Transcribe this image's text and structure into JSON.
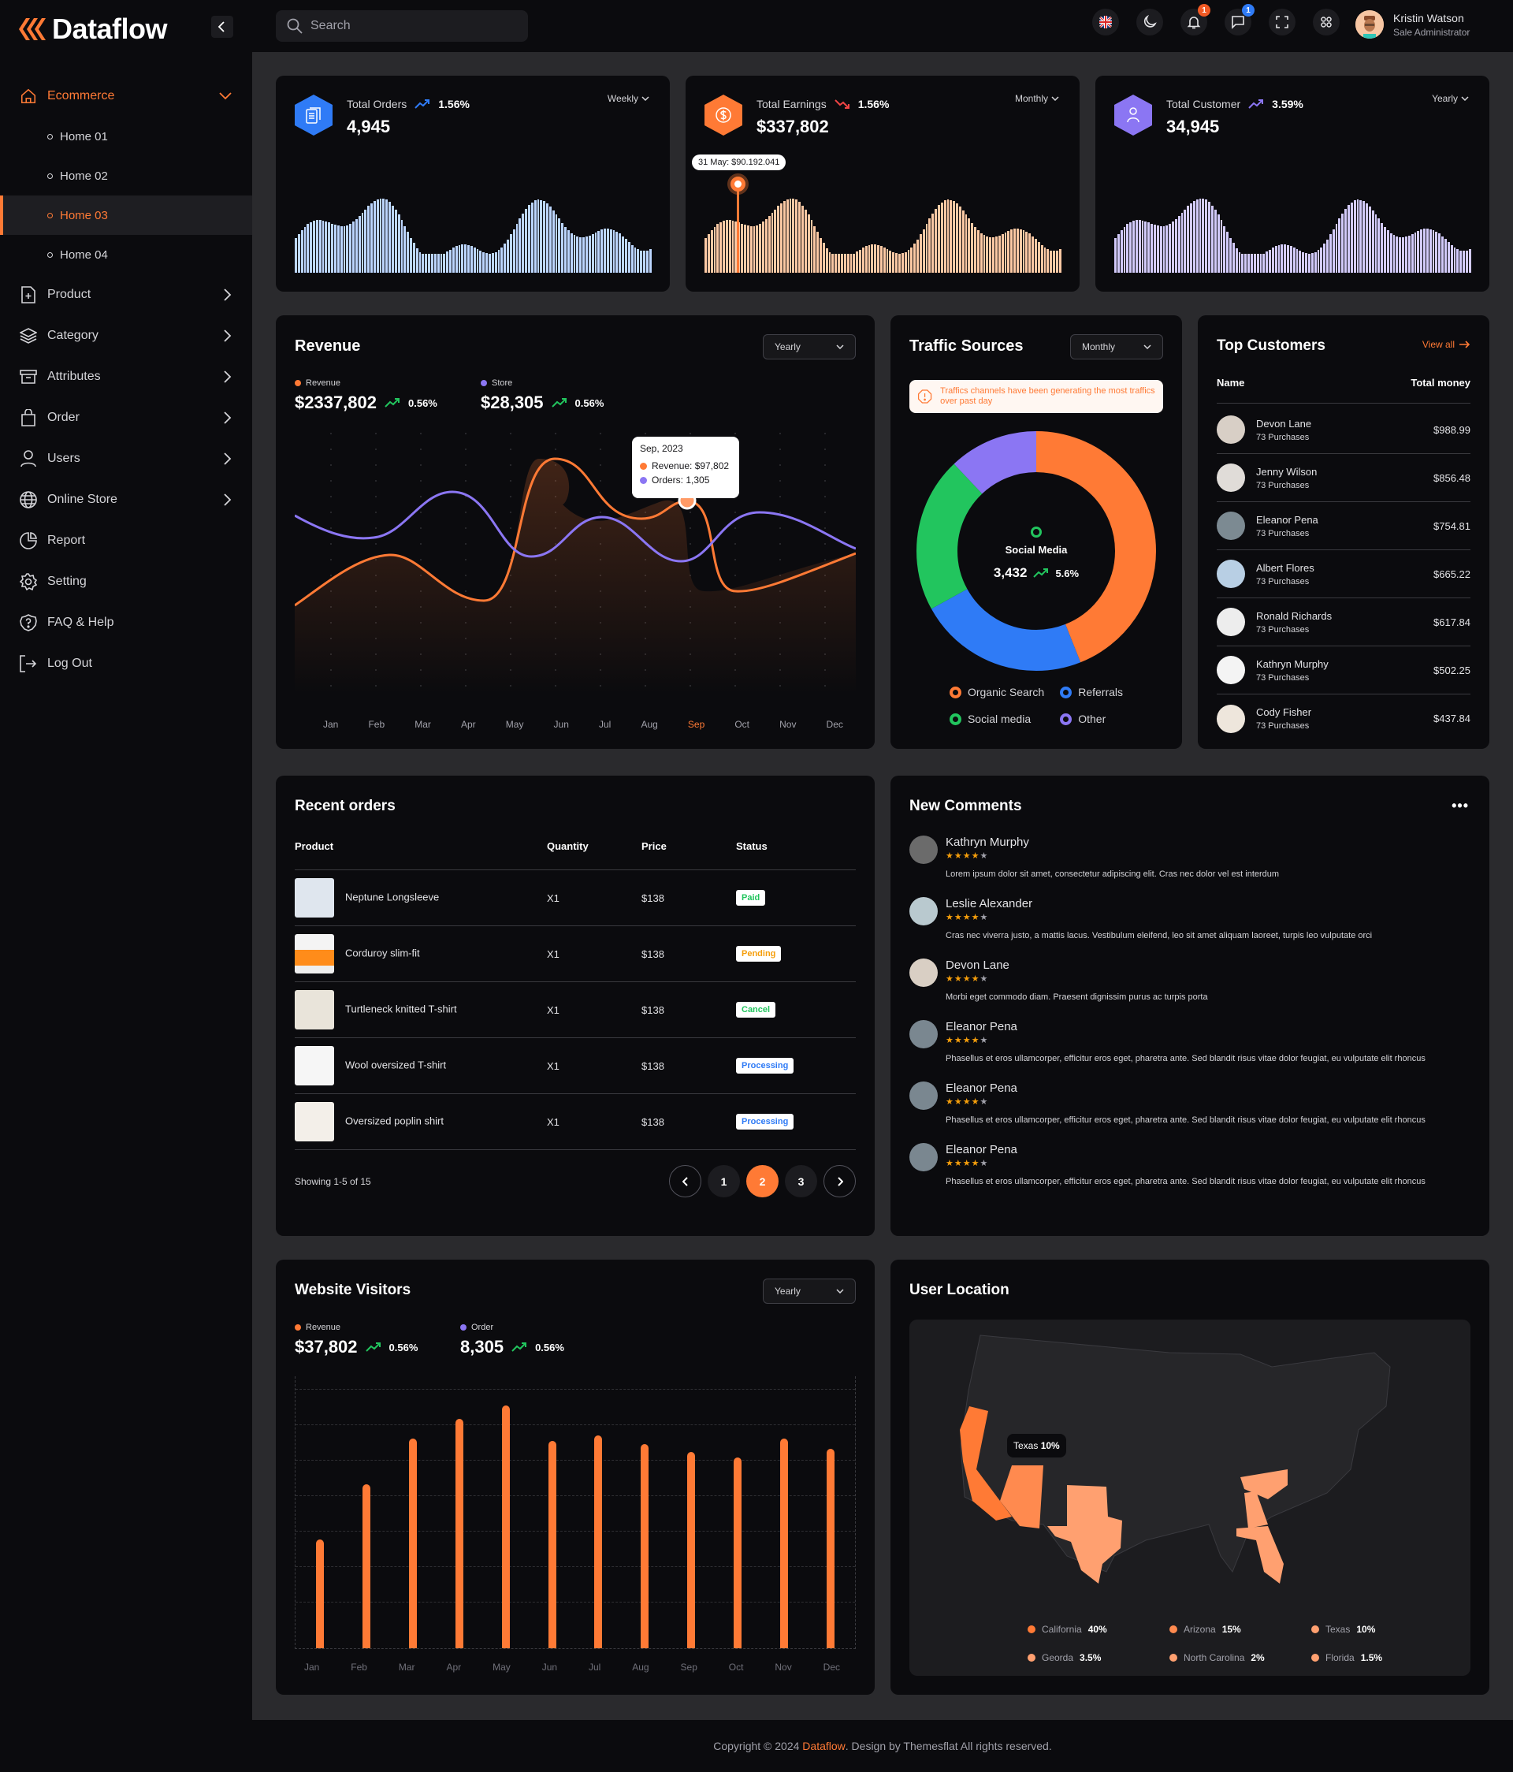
{
  "app": {
    "name": "Dataflow"
  },
  "search": {
    "placeholder": "Search"
  },
  "header": {
    "notifications_count": "1",
    "messages_count": "1",
    "user": {
      "name": "Kristin Watson",
      "role": "Sale Administrator"
    }
  },
  "sidebar": {
    "ecommerce": {
      "label": "Ecommerce",
      "sub": [
        {
          "label": "Home 01"
        },
        {
          "label": "Home 02"
        },
        {
          "label": "Home 03"
        },
        {
          "label": "Home 04"
        }
      ]
    },
    "items": [
      {
        "label": "Product",
        "icon": "file-plus-icon"
      },
      {
        "label": "Category",
        "icon": "layers-icon"
      },
      {
        "label": "Attributes",
        "icon": "archive-icon"
      },
      {
        "label": "Order",
        "icon": "bag-icon"
      },
      {
        "label": "Users",
        "icon": "user-icon"
      },
      {
        "label": "Online Store",
        "icon": "globe-icon"
      },
      {
        "label": "Report",
        "icon": "pie-icon"
      },
      {
        "label": "Setting",
        "icon": "gear-icon"
      },
      {
        "label": "FAQ & Help",
        "icon": "help-icon"
      },
      {
        "label": "Log Out",
        "icon": "logout-icon"
      }
    ]
  },
  "stats": [
    {
      "title": "Total Orders",
      "change": "1.56%",
      "trend": "up",
      "value": "4,945",
      "period": "Weekly",
      "color": "#2f7bf6",
      "bar_color": "#bcd6ff"
    },
    {
      "title": "Total Earnings",
      "change": "1.56%",
      "trend": "down",
      "value": "$337,802",
      "period": "Monthly",
      "color": "#ff7a35",
      "bar_color": "#fcc9a4",
      "tooltip": "31 May: $90.192.041"
    },
    {
      "title": "Total Customer",
      "change": "3.59%",
      "trend": "up",
      "value": "34,945",
      "period": "Yearly",
      "color": "#8b76f3",
      "bar_color": "#d3cbfb"
    }
  ],
  "revenue": {
    "title": "Revenue",
    "period": "Yearly",
    "series": [
      {
        "label": "Revenue",
        "value": "$2337,802",
        "change": "0.56%",
        "color": "#ff7a35"
      },
      {
        "label": "Store",
        "value": "$28,305",
        "change": "0.56%",
        "color": "#8b76f3"
      }
    ],
    "tooltip": {
      "title": "Sep, 2023",
      "line1": "Revenue: $97,802",
      "line2": "Orders: 1,305"
    },
    "months": [
      "Jan",
      "Feb",
      "Mar",
      "Apr",
      "May",
      "Jun",
      "Jul",
      "Aug",
      "Sep",
      "Oct",
      "Nov",
      "Dec"
    ],
    "active_month": "Sep"
  },
  "traffic": {
    "title": "Traffic Sources",
    "period": "Monthly",
    "alert": "Traffics channels have been generating the most traffics over past day",
    "center": {
      "label": "Social Media",
      "value": "3,432",
      "change": "5.6%"
    },
    "legend": [
      {
        "label": "Organic Search",
        "color": "#ff7a35"
      },
      {
        "label": "Referrals",
        "color": "#2f7bf6"
      },
      {
        "label": "Social media",
        "color": "#22c55e"
      },
      {
        "label": "Other",
        "color": "#8b76f3"
      }
    ]
  },
  "top_customers": {
    "title": "Top Customers",
    "view_all": "View all",
    "col_name": "Name",
    "col_total": "Total money",
    "rows": [
      {
        "name": "Devon Lane",
        "sub": "73 Purchases",
        "amount": "$988.99"
      },
      {
        "name": "Jenny Wilson",
        "sub": "73 Purchases",
        "amount": "$856.48"
      },
      {
        "name": "Eleanor Pena",
        "sub": "73 Purchases",
        "amount": "$754.81"
      },
      {
        "name": "Albert Flores",
        "sub": "73 Purchases",
        "amount": "$665.22"
      },
      {
        "name": "Ronald Richards",
        "sub": "73 Purchases",
        "amount": "$617.84"
      },
      {
        "name": "Kathryn Murphy",
        "sub": "73 Purchases",
        "amount": "$502.25"
      },
      {
        "name": "Cody Fisher",
        "sub": "73 Purchases",
        "amount": "$437.84"
      }
    ]
  },
  "recent_orders": {
    "title": "Recent orders",
    "columns": [
      "Product",
      "Quantity",
      "Price",
      "Status"
    ],
    "rows": [
      {
        "product": "Neptune Longsleeve",
        "qty": "X1",
        "price": "$138",
        "status": "Paid",
        "status_color": "#22c55e"
      },
      {
        "product": "Corduroy slim-fit",
        "qty": "X1",
        "price": "$138",
        "status": "Pending",
        "status_color": "#f59e0b"
      },
      {
        "product": "Turtleneck knitted T-shirt",
        "qty": "X1",
        "price": "$138",
        "status": "Cancel",
        "status_color": "#22c55e"
      },
      {
        "product": "Wool oversized T-shirt",
        "qty": "X1",
        "price": "$138",
        "status": "Processing",
        "status_color": "#2f7bf6"
      },
      {
        "product": "Oversized poplin shirt",
        "qty": "X1",
        "price": "$138",
        "status": "Processing",
        "status_color": "#2f7bf6"
      }
    ],
    "showing": "Showing 1-5 of 15",
    "pages": [
      "1",
      "2",
      "3"
    ],
    "current_page": "2"
  },
  "comments": {
    "title": "New Comments",
    "items": [
      {
        "name": "Kathryn Murphy",
        "text": "Lorem ipsum dolor sit amet, consectetur adipiscing elit. Cras nec dolor vel est interdum"
      },
      {
        "name": "Leslie Alexander",
        "text": "Cras nec viverra justo, a mattis lacus. Vestibulum eleifend, leo sit amet aliquam laoreet, turpis leo vulputate orci"
      },
      {
        "name": "Devon Lane",
        "text": "Morbi eget commodo diam. Praesent dignissim purus ac turpis porta"
      },
      {
        "name": "Eleanor Pena",
        "text": "Phasellus et eros ullamcorper, efficitur eros eget, pharetra ante. Sed blandit risus vitae dolor feugiat, eu vulputate elit rhoncus"
      },
      {
        "name": "Eleanor Pena",
        "text": "Phasellus et eros ullamcorper, efficitur eros eget, pharetra ante. Sed blandit risus vitae dolor feugiat, eu vulputate elit rhoncus"
      },
      {
        "name": "Eleanor Pena",
        "text": "Phasellus et eros ullamcorper, efficitur eros eget, pharetra ante. Sed blandit risus vitae dolor feugiat, eu vulputate elit rhoncus"
      }
    ],
    "stars": "★★★★",
    "star_empty": "★"
  },
  "visitors": {
    "title": "Website Visitors",
    "period": "Yearly",
    "series": [
      {
        "label": "Revenue",
        "value": "$37,802",
        "change": "0.56%",
        "color": "#ff7a35"
      },
      {
        "label": "Order",
        "value": "8,305",
        "change": "0.56%",
        "color": "#8b76f3"
      }
    ]
  },
  "location": {
    "title": "User Location",
    "tooltip": {
      "name": "Texas",
      "pct": "10%"
    },
    "legend": [
      {
        "name": "California",
        "pct": "40%",
        "color": "#ff7a35"
      },
      {
        "name": "Arizona",
        "pct": "15%",
        "color": "#ff8a4f"
      },
      {
        "name": "Texas",
        "pct": "10%",
        "color": "#ffa070"
      },
      {
        "name": "Georda",
        "pct": "3.5%",
        "color": "#ffa070"
      },
      {
        "name": "North Carolina",
        "pct": "2%",
        "color": "#ffa070"
      },
      {
        "name": "Florida",
        "pct": "1.5%",
        "color": "#ffa070"
      }
    ]
  },
  "footer": {
    "prefix": "Copyright © 2024 ",
    "brand": "Dataflow",
    "suffix": ". Design by Themesflat All rights reserved."
  },
  "chart_data": [
    {
      "type": "line",
      "title": "Revenue",
      "categories": [
        "Jan",
        "Feb",
        "Mar",
        "Apr",
        "May",
        "Jun",
        "Jul",
        "Aug",
        "Sep",
        "Oct",
        "Nov",
        "Dec"
      ],
      "series": [
        {
          "name": "Revenue",
          "values": [
            30,
            42,
            44,
            33,
            38,
            88,
            60,
            65,
            72,
            35,
            37,
            44
          ]
        },
        {
          "name": "Store",
          "values": [
            62,
            50,
            70,
            56,
            48,
            62,
            50,
            45,
            40,
            66,
            60,
            58
          ]
        }
      ],
      "ylim": [
        0,
        100
      ],
      "grid": true
    },
    {
      "type": "bar",
      "title": "Website Visitors",
      "categories": [
        "Jan",
        "Feb",
        "Mar",
        "Apr",
        "May",
        "Jun",
        "Jul",
        "Aug",
        "Sep",
        "Oct",
        "Nov",
        "Dec"
      ],
      "series": [
        {
          "name": "Revenue",
          "values": [
            40,
            60,
            77,
            84,
            89,
            76,
            78,
            75,
            72,
            70,
            77,
            73
          ]
        }
      ],
      "ylim": [
        0,
        100
      ],
      "grid": true
    },
    {
      "type": "pie",
      "title": "Traffic Sources",
      "categories": [
        "Organic Search",
        "Referrals",
        "Social media",
        "Other"
      ],
      "values": [
        44,
        23,
        21,
        12
      ]
    }
  ]
}
